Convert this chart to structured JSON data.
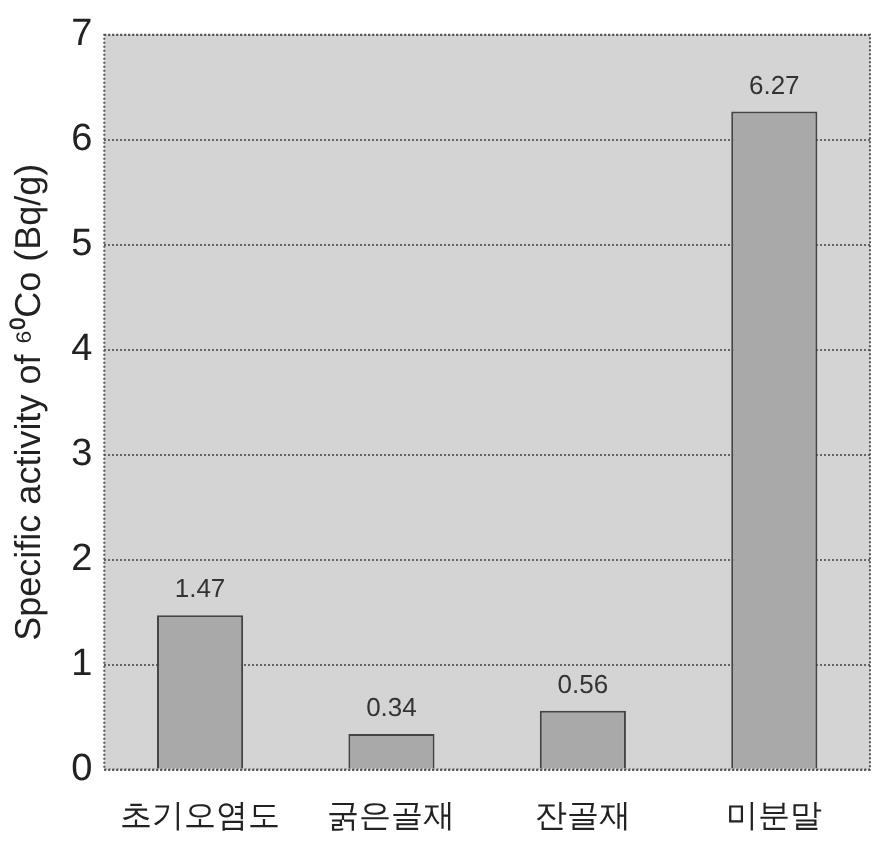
{
  "chart_data": {
    "type": "bar",
    "ylabel": "Specific activity of ⁶⁰Co (Bq/g)",
    "categories": [
      "초기오염도",
      "굵은골재",
      "잔골재",
      "미분말"
    ],
    "values": [
      1.47,
      0.34,
      0.56,
      6.27
    ],
    "color": "#a9a9a9",
    "ylim": [
      0,
      7
    ],
    "yticks": [
      0,
      1,
      2,
      3,
      4,
      5,
      6,
      7
    ],
    "grid": "y",
    "data_labels": true,
    "legend": false
  }
}
